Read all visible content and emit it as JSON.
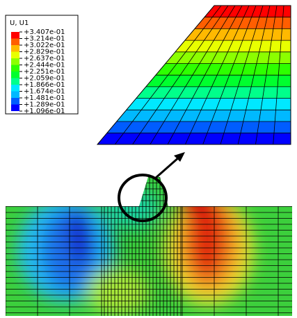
{
  "legend": {
    "title": "U, U1",
    "labels": [
      "+3.407e-01",
      "+3.214e-01",
      "+3.022e-01",
      "+2.829e-01",
      "+2.637e-01",
      "+2.444e-01",
      "+2.251e-01",
      "+2.059e-01",
      "+1.866e-01",
      "+1.674e-01",
      "+1.481e-01",
      "+1.289e-01",
      "+1.096e-01"
    ],
    "colors": [
      "#ff0000",
      "#ff5e00",
      "#ffb900",
      "#e8ff00",
      "#8cff00",
      "#2eff00",
      "#00ff2e",
      "#00ff8b",
      "#00e8ff",
      "#00b9ff",
      "#005dff",
      "#0000ff"
    ]
  }
}
